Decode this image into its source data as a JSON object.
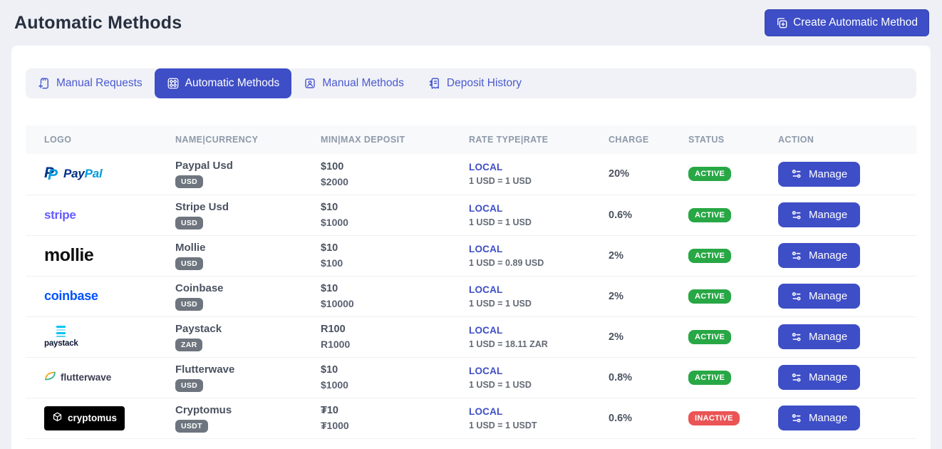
{
  "colors": {
    "accent": "#3e4ec6",
    "accent_dark": "#3443b0",
    "tab_text": "#4a59d0",
    "status_active": "#28a745",
    "status_inactive": "#ea5455",
    "currency_badge": "#6e757e"
  },
  "header": {
    "title": "Automatic Methods",
    "create_button_label": "Create Automatic Method"
  },
  "tabs": [
    {
      "label": "Manual Requests",
      "icon": "manual-requests-icon",
      "active": false
    },
    {
      "label": "Automatic Methods",
      "icon": "automatic-methods-icon",
      "active": true
    },
    {
      "label": "Manual Methods",
      "icon": "manual-methods-icon",
      "active": false
    },
    {
      "label": "Deposit History",
      "icon": "deposit-history-icon",
      "active": false
    }
  ],
  "table": {
    "headers": [
      "LOGO",
      "NAME|CURRENCY",
      "MIN|MAX DEPOSIT",
      "RATE TYPE|RATE",
      "CHARGE",
      "STATUS",
      "ACTION"
    ],
    "manage_label": "Manage",
    "rows": [
      {
        "logo": {
          "brand": "paypal",
          "parts": [
            "Pay",
            "Pal"
          ]
        },
        "name": "Paypal Usd",
        "currency": "USD",
        "min": "$100",
        "max": "$2000",
        "rate_type": "LOCAL",
        "rate": "1 USD = 1 USD",
        "charge": "20%",
        "status": "ACTIVE"
      },
      {
        "logo": {
          "brand": "stripe",
          "text": "stripe"
        },
        "name": "Stripe Usd",
        "currency": "USD",
        "min": "$10",
        "max": "$1000",
        "rate_type": "LOCAL",
        "rate": "1 USD = 1 USD",
        "charge": "0.6%",
        "status": "ACTIVE"
      },
      {
        "logo": {
          "brand": "mollie",
          "text": "mollie"
        },
        "name": "Mollie",
        "currency": "USD",
        "min": "$10",
        "max": "$100",
        "rate_type": "LOCAL",
        "rate": "1 USD = 0.89 USD",
        "charge": "2%",
        "status": "ACTIVE"
      },
      {
        "logo": {
          "brand": "coinbase",
          "text": "coinbase"
        },
        "name": "Coinbase",
        "currency": "USD",
        "min": "$10",
        "max": "$10000",
        "rate_type": "LOCAL",
        "rate": "1 USD = 1 USD",
        "charge": "2%",
        "status": "ACTIVE"
      },
      {
        "logo": {
          "brand": "paystack",
          "text": "paystack"
        },
        "name": "Paystack",
        "currency": "ZAR",
        "min": "R100",
        "max": "R1000",
        "rate_type": "LOCAL",
        "rate": "1 USD = 18.11 ZAR",
        "charge": "2%",
        "status": "ACTIVE"
      },
      {
        "logo": {
          "brand": "flutterwave",
          "text": "flutterwave"
        },
        "name": "Flutterwave",
        "currency": "USD",
        "min": "$10",
        "max": "$1000",
        "rate_type": "LOCAL",
        "rate": "1 USD = 1 USD",
        "charge": "0.8%",
        "status": "ACTIVE"
      },
      {
        "logo": {
          "brand": "cryptomus",
          "text": "cryptomus"
        },
        "name": "Cryptomus",
        "currency": "USDT",
        "min": "₮10",
        "max": "₮1000",
        "rate_type": "LOCAL",
        "rate": "1 USD = 1 USDT",
        "charge": "0.6%",
        "status": "INACTIVE"
      }
    ]
  }
}
